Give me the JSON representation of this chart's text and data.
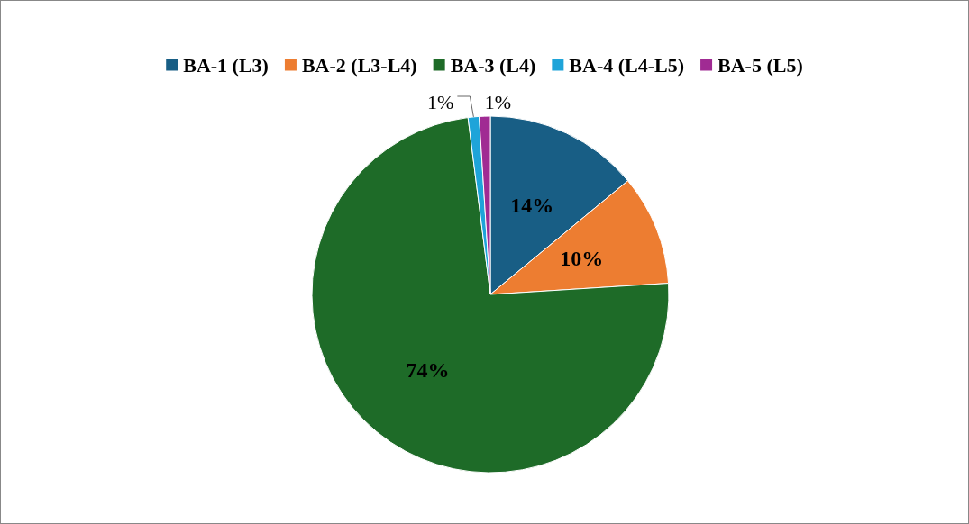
{
  "chart_data": {
    "type": "pie",
    "categories": [
      "BA-1 (L3)",
      "BA-2 (L3-L4)",
      "BA-3 (L4)",
      "BA-4 (L4-L5)",
      "BA-5 (L5)"
    ],
    "values": [
      14,
      10,
      74,
      1,
      1
    ],
    "colors": [
      "#185e85",
      "#ed7d31",
      "#1e6b28",
      "#1ea4d9",
      "#a02b93"
    ],
    "value_labels": [
      "14%",
      "10%",
      "74%",
      "1%",
      "1%"
    ],
    "legend": "top"
  }
}
